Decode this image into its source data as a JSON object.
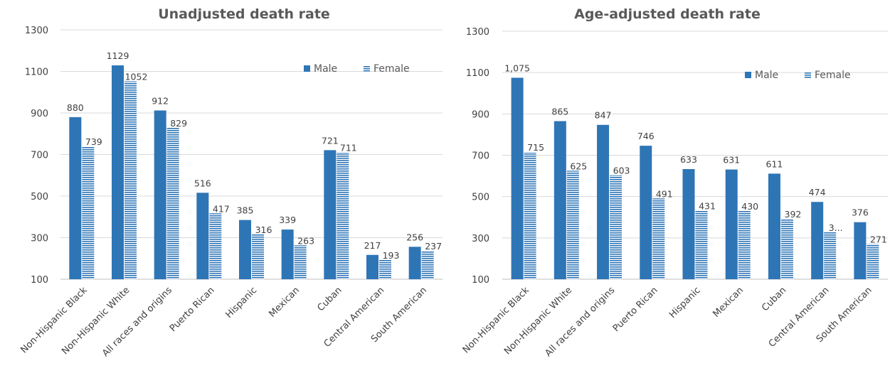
{
  "colors": {
    "male": "#2e75b6",
    "female_stripe": "#2e75b6",
    "grid": "#d9d9d9",
    "axis": "#bfbfbf",
    "text": "#404040",
    "title": "#595959"
  },
  "chart_data": [
    {
      "type": "bar",
      "title": "Unadjusted death rate",
      "categories": [
        "Non-Hispanic Black",
        "Non-Hispanic White",
        "All races and origins",
        "Puerto Rican",
        "Hispanic",
        "Mexican",
        "Cuban",
        "Central American",
        "South American"
      ],
      "series": [
        {
          "name": "Male",
          "values": [
            880,
            1129,
            912,
            516,
            385,
            339,
            721,
            217,
            256
          ]
        },
        {
          "name": "Female",
          "values": [
            739,
            1052,
            829,
            417,
            316,
            263,
            711,
            193,
            237
          ]
        }
      ],
      "data_labels": {
        "Male": [
          "880",
          "1129",
          "912",
          "516",
          "385",
          "339",
          "721",
          "217",
          "256"
        ],
        "Female": [
          "739",
          "1052",
          "829",
          "417",
          "316",
          "263",
          "711",
          "193",
          "237"
        ]
      },
      "yticks": [
        "100",
        "300",
        "500",
        "700",
        "900",
        "1100",
        "1300"
      ],
      "ylim": [
        100,
        1300
      ],
      "grid": true,
      "legend": "top-right"
    },
    {
      "type": "bar",
      "title": "Age-adjusted death rate",
      "categories": [
        "Non-Hispanic Black",
        "Non-Hispanic White",
        "All races and origins",
        "Puerto Rican",
        "Hispanic",
        "Mexican",
        "Cuban",
        "Central American",
        "South American"
      ],
      "series": [
        {
          "name": "Male",
          "values": [
            1075,
            865,
            847,
            746,
            633,
            631,
            611,
            474,
            376
          ]
        },
        {
          "name": "Female",
          "values": [
            715,
            625,
            603,
            491,
            431,
            430,
            392,
            327,
            271
          ]
        }
      ],
      "data_labels": {
        "Male": [
          "1,075",
          "865",
          "847",
          "746",
          "633",
          "631",
          "611",
          "474",
          "376"
        ],
        "Female": [
          "715",
          "625",
          "603",
          "491",
          "431",
          "430",
          "392",
          "3...",
          "271"
        ]
      },
      "yticks": [
        "100",
        "300",
        "500",
        "700",
        "900",
        "1100",
        "1300"
      ],
      "ylim": [
        100,
        1300
      ],
      "grid": true,
      "legend": "top-right"
    }
  ]
}
